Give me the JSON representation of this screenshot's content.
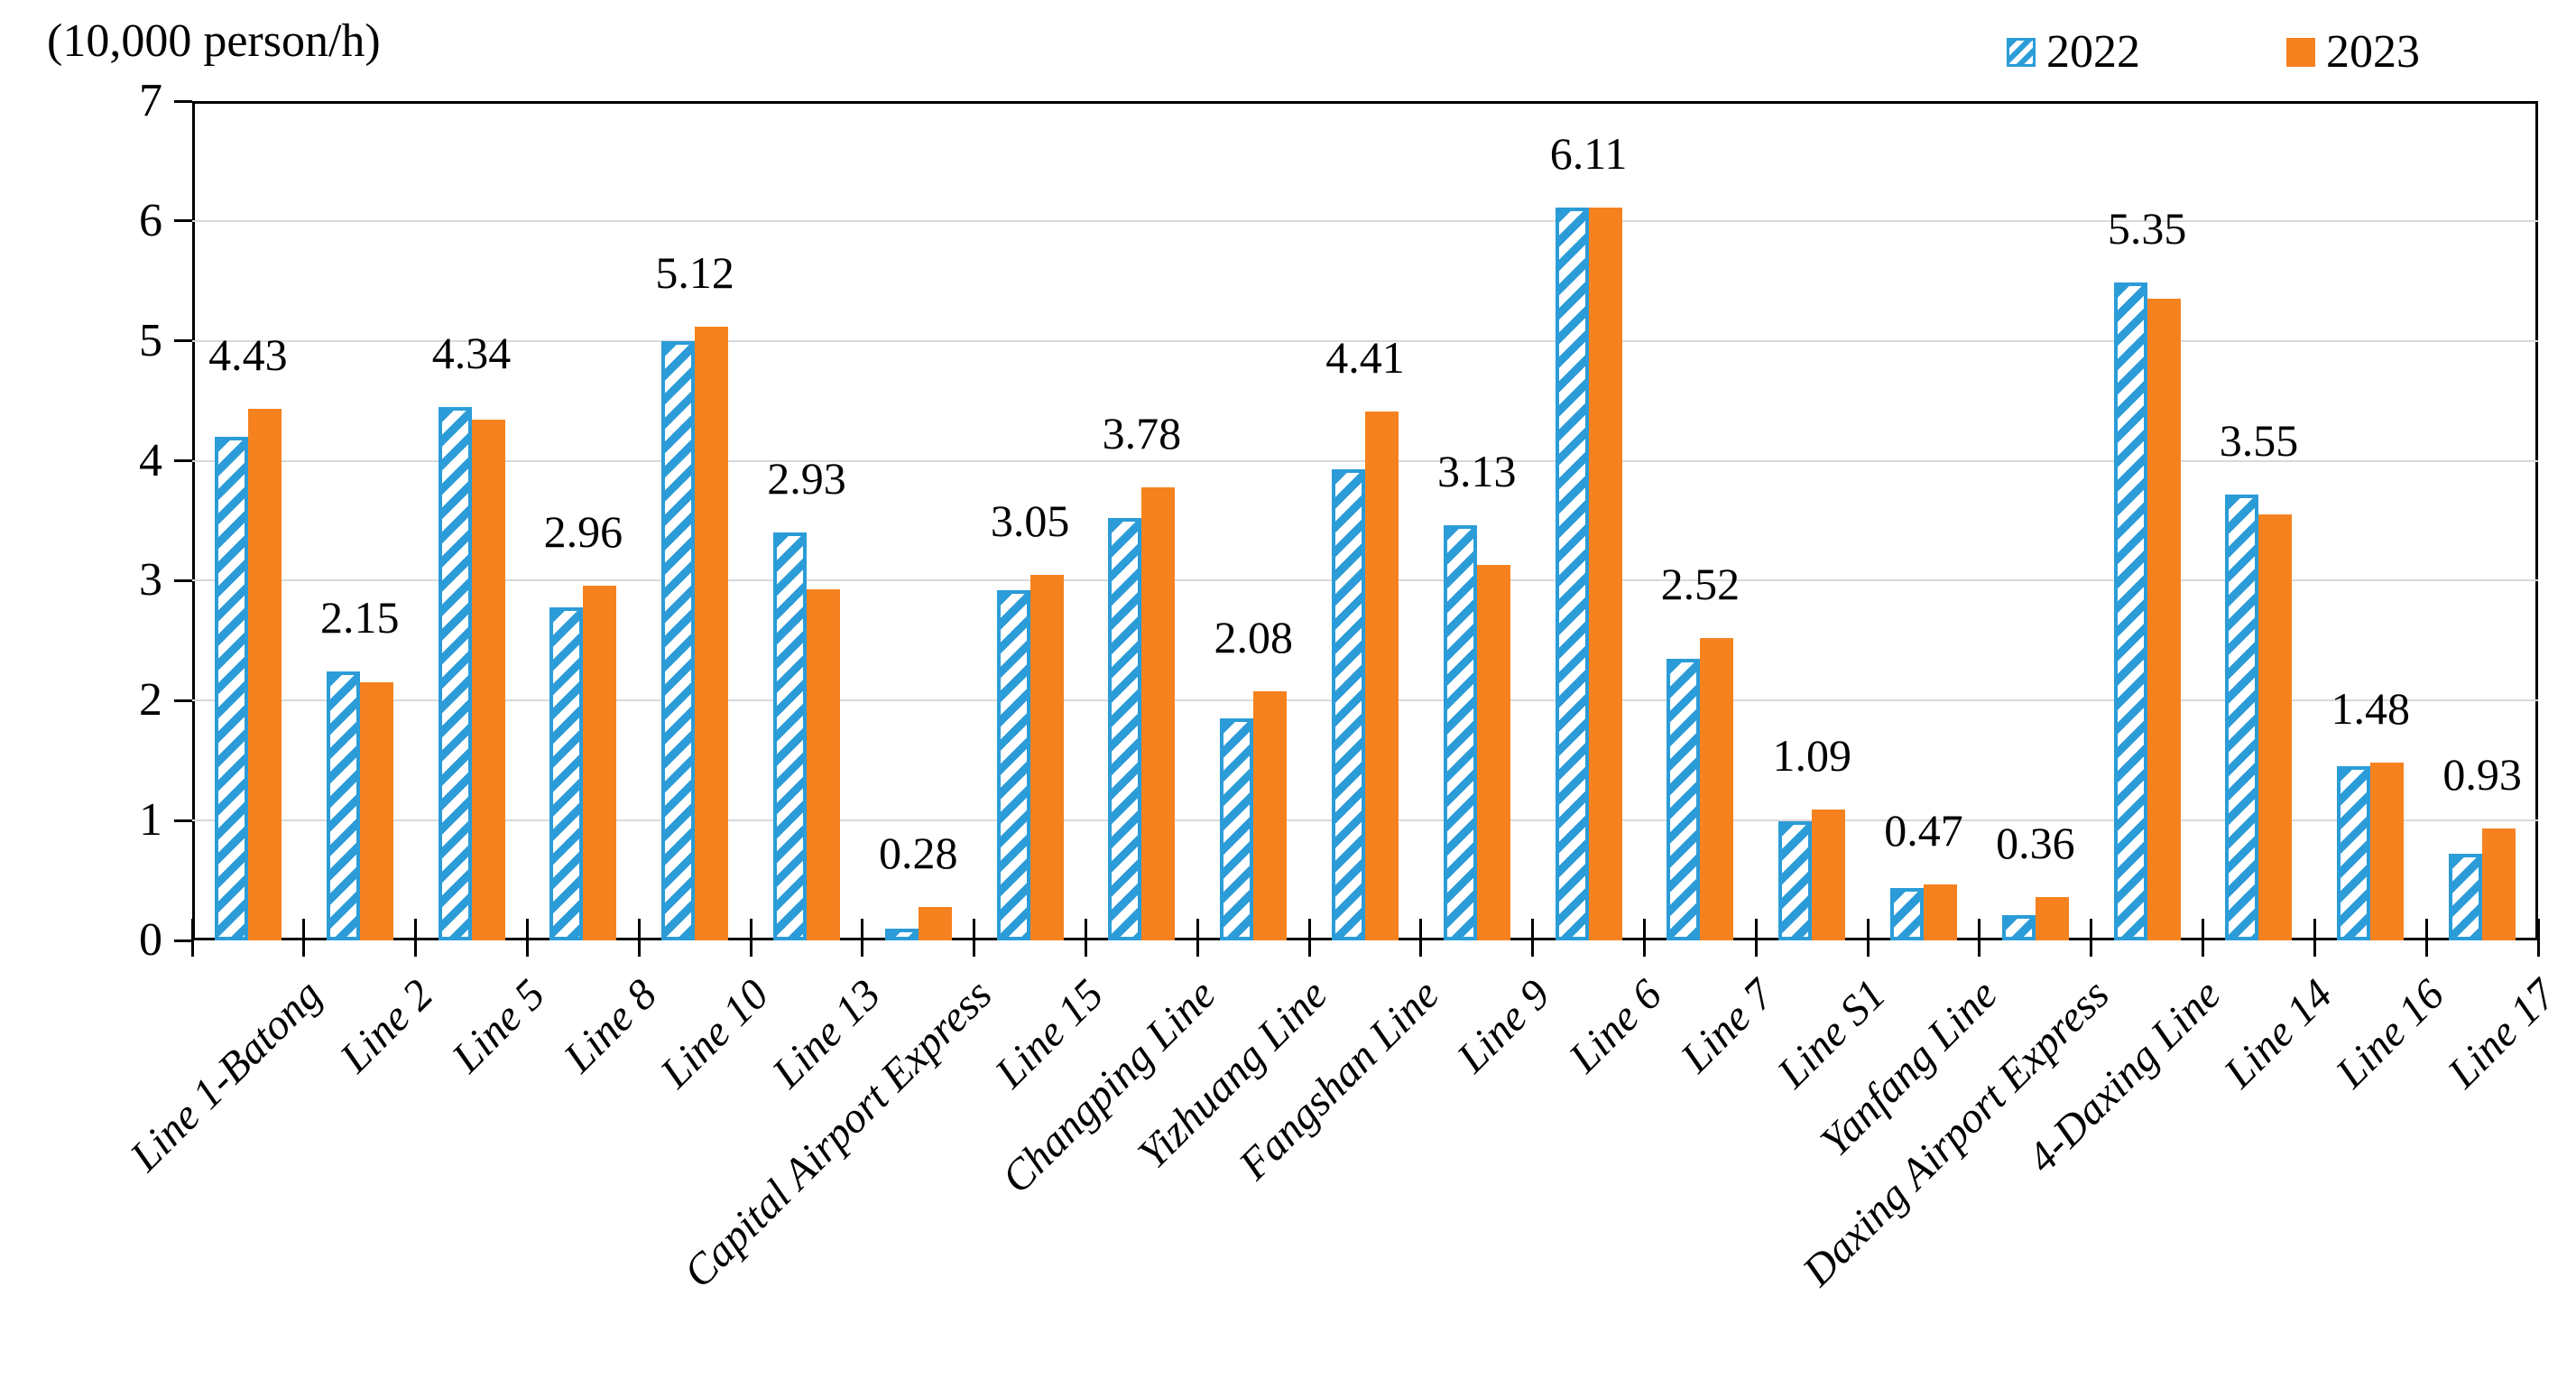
{
  "legend": {
    "items": [
      {
        "label": "2022",
        "swatch": "hatched-blue-square-icon"
      },
      {
        "label": "2023",
        "swatch": "solid-orange-square-icon"
      }
    ]
  },
  "colors": {
    "series_2022_blue": "#2B9CD8",
    "series_2023_orange": "#F6821F",
    "gridline": "#D9D9D9",
    "axis": "#000000",
    "text": "#000000"
  },
  "chart_data": {
    "type": "bar",
    "title": "",
    "ylabel": "(10,000 person/h)",
    "xlabel": "",
    "ylim": [
      0,
      7
    ],
    "yticks": [
      0,
      1,
      2,
      3,
      4,
      5,
      6,
      7
    ],
    "grid": true,
    "legend_position": "top-right",
    "bar_style_2022": "white fill with blue diagonal hatch and blue outline",
    "bar_style_2023": "solid orange",
    "data_labels_series": "2023",
    "categories": [
      "Line 1-Batong",
      "Line 2",
      "Line 5",
      "Line 8",
      "Line 10",
      "Line 13",
      "Capital Airport Express",
      "Line 15",
      "Changping Line",
      "Yizhuang Line",
      "Fangshan Line",
      "Line 9",
      "Line 6",
      "Line 7",
      "Line S1",
      "Yanfang Line",
      "Daxing Airport Express",
      "4-Daxing Line",
      "Line 14",
      "Line 16",
      "Line 17"
    ],
    "series": [
      {
        "name": "2022",
        "values": [
          4.2,
          2.24,
          4.45,
          2.78,
          5.0,
          3.4,
          0.1,
          2.92,
          3.52,
          1.85,
          3.93,
          3.46,
          6.11,
          2.35,
          0.99,
          0.44,
          0.21,
          5.49,
          3.72,
          1.45,
          0.72
        ]
      },
      {
        "name": "2023",
        "values": [
          4.43,
          2.15,
          4.34,
          2.96,
          5.12,
          2.93,
          0.28,
          3.05,
          3.78,
          2.08,
          4.41,
          3.13,
          6.11,
          2.52,
          1.09,
          0.47,
          0.36,
          5.35,
          3.55,
          1.48,
          0.93
        ],
        "data_labels": [
          "4.43",
          "2.15",
          "4.34",
          "2.96",
          "5.12",
          "2.93",
          "0.28",
          "3.05",
          "3.78",
          "2.08",
          "4.41",
          "3.13",
          "6.11",
          "2.52",
          "1.09",
          "0.47",
          "0.36",
          "5.35",
          "3.55",
          "1.48",
          "0.93"
        ]
      }
    ]
  }
}
